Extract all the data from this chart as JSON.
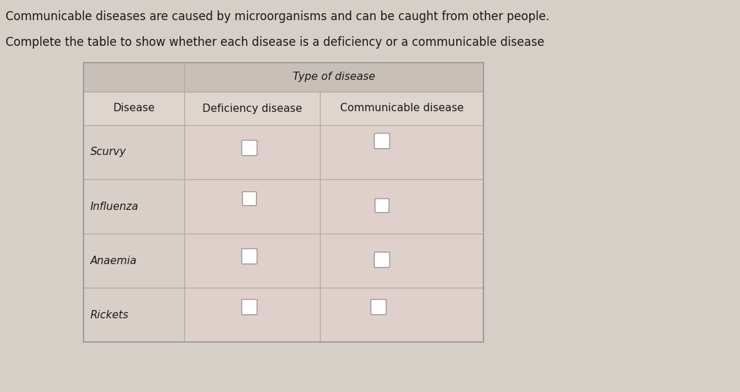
{
  "title_line1": "Communicable diseases are caused by microorganisms and can be caught from other people.",
  "title_line2": "Complete the table to show whether each disease is a deficiency or a communicable disease",
  "table_header_merged": "Type of disease",
  "col_headers": [
    "Disease",
    "Deficiency disease",
    "Communicable disease"
  ],
  "diseases": [
    "Scurvy",
    "Influenza",
    "Anaemia",
    "Rickets"
  ],
  "background_color": "#d6cfc8",
  "merged_header_bg": "#c8bfb8",
  "col_header_bg": "#ddd5ce",
  "cell_bg_disease": "#d8d0c8",
  "cell_bg_pink": "#dfd0cc",
  "text_color": "#1a1a1a",
  "border_color": "#b0a8a0",
  "title_fontsize": 12,
  "header_fontsize": 11,
  "cell_fontsize": 11
}
